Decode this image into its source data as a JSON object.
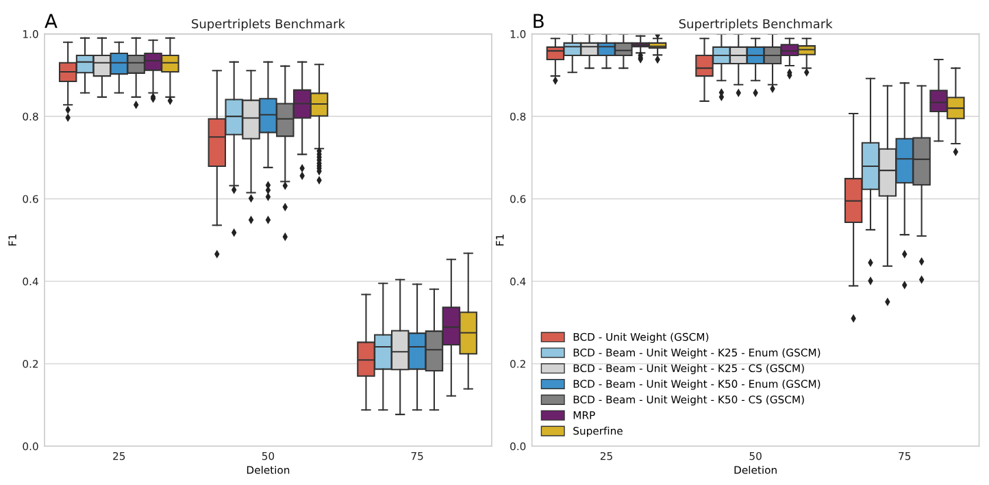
{
  "chart_data": [
    {
      "type": "box",
      "title": "Supertriplets Benchmark",
      "annotations": [
        "A"
      ],
      "xlabel": "Deletion",
      "ylabel": "F1",
      "categories": [
        "25",
        "50",
        "75"
      ],
      "ylim": [
        0,
        1
      ],
      "yticks": [
        {
          "value": 0,
          "label": "0.0"
        },
        {
          "value": 0.2,
          "label": "0.2"
        },
        {
          "value": 0.4,
          "label": "0.4"
        },
        {
          "value": 0.6,
          "label": "0.6"
        },
        {
          "value": 0.8,
          "label": "0.8"
        },
        {
          "value": 1,
          "label": "1.0"
        }
      ],
      "grid": "y",
      "legend": false,
      "marker": "diamond",
      "series": [
        {
          "color": "#d55e50",
          "boxes": [
            {
              "low": 0.828,
              "q1": 0.885,
              "median": 0.908,
              "q3": 0.93,
              "high": 0.98,
              "outliers": [
                0.816,
                0.797
              ]
            },
            {
              "low": 0.536,
              "q1": 0.679,
              "median": 0.75,
              "q3": 0.794,
              "high": 0.911,
              "outliers": [
                0.466
              ]
            },
            {
              "low": 0.088,
              "q1": 0.17,
              "median": 0.209,
              "q3": 0.252,
              "high": 0.368
            }
          ]
        },
        {
          "color": "#92c6e0",
          "boxes": [
            {
              "low": 0.857,
              "q1": 0.906,
              "median": 0.932,
              "q3": 0.948,
              "high": 0.99
            },
            {
              "low": 0.632,
              "q1": 0.756,
              "median": 0.8,
              "q3": 0.841,
              "high": 0.932,
              "outliers": [
                0.622,
                0.518
              ]
            },
            {
              "low": 0.088,
              "q1": 0.187,
              "median": 0.241,
              "q3": 0.27,
              "high": 0.395
            }
          ]
        },
        {
          "color": "#d3d3d3",
          "boxes": [
            {
              "low": 0.847,
              "q1": 0.898,
              "median": 0.93,
              "q3": 0.948,
              "high": 0.99
            },
            {
              "low": 0.615,
              "q1": 0.746,
              "median": 0.796,
              "q3": 0.839,
              "high": 0.911,
              "outliers": [
                0.601,
                0.549
              ]
            },
            {
              "low": 0.077,
              "q1": 0.186,
              "median": 0.229,
              "q3": 0.28,
              "high": 0.404
            }
          ]
        },
        {
          "color": "#3e90c9",
          "boxes": [
            {
              "low": 0.857,
              "q1": 0.903,
              "median": 0.93,
              "q3": 0.953,
              "high": 0.98
            },
            {
              "low": 0.676,
              "q1": 0.761,
              "median": 0.804,
              "q3": 0.843,
              "high": 0.932,
              "outliers": [
                0.633,
                0.621,
                0.605,
                0.549
              ]
            },
            {
              "low": 0.088,
              "q1": 0.187,
              "median": 0.241,
              "q3": 0.274,
              "high": 0.393
            }
          ]
        },
        {
          "color": "#808080",
          "boxes": [
            {
              "low": 0.847,
              "q1": 0.905,
              "median": 0.93,
              "q3": 0.948,
              "high": 0.99,
              "outliers": [
                0.828
              ]
            },
            {
              "low": 0.642,
              "q1": 0.752,
              "median": 0.794,
              "q3": 0.831,
              "high": 0.922,
              "outliers": [
                0.632,
                0.58,
                0.508
              ]
            },
            {
              "low": 0.088,
              "q1": 0.183,
              "median": 0.234,
              "q3": 0.279,
              "high": 0.381
            }
          ]
        },
        {
          "color": "#6c226b",
          "boxes": [
            {
              "low": 0.857,
              "q1": 0.912,
              "median": 0.935,
              "q3": 0.953,
              "high": 0.985,
              "outliers": [
                0.847,
                0.843
              ]
            },
            {
              "low": 0.708,
              "q1": 0.796,
              "median": 0.831,
              "q3": 0.864,
              "high": 0.932,
              "outliers": [
                0.674,
                0.656
              ]
            },
            {
              "low": 0.122,
              "q1": 0.246,
              "median": 0.289,
              "q3": 0.337,
              "high": 0.453
            }
          ]
        },
        {
          "color": "#d6b22a",
          "boxes": [
            {
              "low": 0.847,
              "q1": 0.908,
              "median": 0.93,
              "q3": 0.948,
              "high": 0.99,
              "outliers": [
                0.838
              ]
            },
            {
              "low": 0.722,
              "q1": 0.801,
              "median": 0.83,
              "q3": 0.856,
              "high": 0.926,
              "outliers": [
                0.716,
                0.708,
                0.701,
                0.694,
                0.686,
                0.68,
                0.674,
                0.667,
                0.645
              ]
            },
            {
              "low": 0.139,
              "q1": 0.224,
              "median": 0.275,
              "q3": 0.325,
              "high": 0.468
            }
          ]
        }
      ]
    },
    {
      "type": "box",
      "title": "Supertriplets Benchmark",
      "annotations": [
        "B"
      ],
      "xlabel": "Deletion",
      "ylabel": "F1",
      "categories": [
        "25",
        "50",
        "75"
      ],
      "ylim": [
        0,
        1
      ],
      "yticks": [
        {
          "value": 0,
          "label": "0.0"
        },
        {
          "value": 0.2,
          "label": "0.2"
        },
        {
          "value": 0.4,
          "label": "0.4"
        },
        {
          "value": 0.6,
          "label": "0.6"
        },
        {
          "value": 0.8,
          "label": "0.8"
        },
        {
          "value": 1,
          "label": "1.0"
        }
      ],
      "grid": "y",
      "legend": "bottom left",
      "marker": "diamond",
      "series": [
        {
          "name": "BCD - Unit Weight (GSCM)",
          "color": "#d55e50",
          "boxes": [
            {
              "low": 0.898,
              "q1": 0.938,
              "median": 0.959,
              "q3": 0.968,
              "high": 0.989,
              "outliers": [
                0.887
              ]
            },
            {
              "low": 0.837,
              "q1": 0.898,
              "median": 0.917,
              "q3": 0.948,
              "high": 0.989
            },
            {
              "low": 0.389,
              "q1": 0.543,
              "median": 0.595,
              "q3": 0.649,
              "high": 0.807,
              "outliers": [
                0.31
              ]
            }
          ]
        },
        {
          "name": "BCD - Beam - Unit Weight - K25 - Enum (GSCM)",
          "color": "#92c6e0",
          "boxes": [
            {
              "low": 0.907,
              "q1": 0.948,
              "median": 0.969,
              "q3": 0.978,
              "high": 1.0
            },
            {
              "low": 0.887,
              "q1": 0.928,
              "median": 0.948,
              "q3": 0.968,
              "high": 1.0,
              "outliers": [
                0.858,
                0.847
              ]
            },
            {
              "low": 0.525,
              "q1": 0.623,
              "median": 0.679,
              "q3": 0.736,
              "high": 0.892,
              "outliers": [
                0.445,
                0.401
              ]
            }
          ]
        },
        {
          "name": "BCD - Beam - Unit Weight - K25 - CS (GSCM)",
          "color": "#d3d3d3",
          "boxes": [
            {
              "low": 0.917,
              "q1": 0.948,
              "median": 0.969,
              "q3": 0.978,
              "high": 1.0
            },
            {
              "low": 0.877,
              "q1": 0.928,
              "median": 0.948,
              "q3": 0.968,
              "high": 1.0,
              "outliers": [
                0.857
              ]
            },
            {
              "low": 0.437,
              "q1": 0.607,
              "median": 0.669,
              "q3": 0.721,
              "high": 0.874,
              "outliers": [
                0.35
              ]
            }
          ]
        },
        {
          "name": "BCD - Beam - Unit Weight - K50 - Enum (GSCM)",
          "color": "#3e90c9",
          "boxes": [
            {
              "low": 0.917,
              "q1": 0.948,
              "median": 0.969,
              "q3": 0.978,
              "high": 1.0
            },
            {
              "low": 0.887,
              "q1": 0.928,
              "median": 0.948,
              "q3": 0.968,
              "high": 0.989,
              "outliers": [
                0.857
              ]
            },
            {
              "low": 0.513,
              "q1": 0.639,
              "median": 0.697,
              "q3": 0.746,
              "high": 0.881,
              "outliers": [
                0.466,
                0.391
              ]
            }
          ]
        },
        {
          "name": "BCD - Beam - Unit Weight - K50 - CS (GSCM)",
          "color": "#808080",
          "boxes": [
            {
              "low": 0.917,
              "q1": 0.948,
              "median": 0.96,
              "q3": 0.978,
              "high": 1.0
            },
            {
              "low": 0.877,
              "q1": 0.928,
              "median": 0.948,
              "q3": 0.968,
              "high": 1.0,
              "outliers": [
                0.867
              ]
            },
            {
              "low": 0.51,
              "q1": 0.634,
              "median": 0.696,
              "q3": 0.748,
              "high": 0.874,
              "outliers": [
                0.448,
                0.404
              ]
            }
          ]
        },
        {
          "name": "MRP",
          "color": "#6c226b",
          "boxes": [
            {
              "low": 0.954,
              "q1": 0.969,
              "median": 0.973,
              "q3": 0.978,
              "high": 0.995,
              "outliers": [
                0.948,
                0.942,
                0.939
              ]
            },
            {
              "low": 0.923,
              "q1": 0.948,
              "median": 0.959,
              "q3": 0.974,
              "high": 0.989,
              "outliers": [
                0.906,
                0.9
              ]
            },
            {
              "low": 0.74,
              "q1": 0.812,
              "median": 0.834,
              "q3": 0.863,
              "high": 0.938
            }
          ]
        },
        {
          "name": "Superfine",
          "color": "#d6b22a",
          "boxes": [
            {
              "low": 0.949,
              "q1": 0.966,
              "median": 0.97,
              "q3": 0.978,
              "high": 0.989,
              "outliers": [
                0.998,
                0.938
              ]
            },
            {
              "low": 0.917,
              "q1": 0.95,
              "median": 0.962,
              "q3": 0.971,
              "high": 0.989,
              "outliers": [
                0.907
              ]
            },
            {
              "low": 0.734,
              "q1": 0.795,
              "median": 0.82,
              "q3": 0.846,
              "high": 0.917,
              "outliers": [
                0.714
              ]
            }
          ]
        }
      ]
    }
  ]
}
